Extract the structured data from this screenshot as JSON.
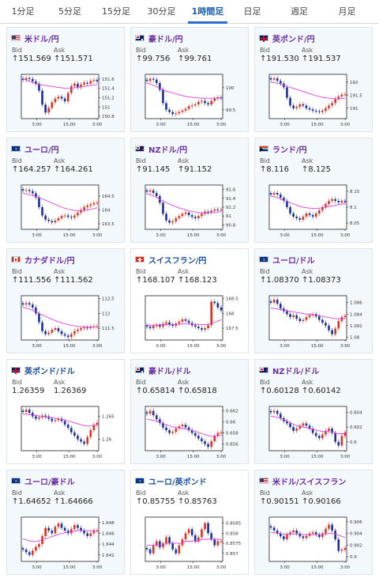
{
  "tabs": [
    {
      "label": "1分足",
      "active": false
    },
    {
      "label": "5分足",
      "active": false
    },
    {
      "label": "15分足",
      "active": false
    },
    {
      "label": "30分足",
      "active": false
    },
    {
      "label": "1時間足",
      "active": true
    },
    {
      "label": "日足",
      "active": false
    },
    {
      "label": "週足",
      "active": false
    },
    {
      "label": "月足",
      "active": false
    }
  ],
  "labels": {
    "bid": "Bid",
    "ask": "Ask"
  },
  "x_ticks": [
    "3:00",
    "15:00",
    "3:00"
  ],
  "colors": {
    "up": "#e03020",
    "down": "#1a2fa0",
    "ma_pink": "#e040e0",
    "ma_teal": "#40b0b0"
  },
  "pairs": [
    {
      "name": "米ドル/円",
      "flag": "us",
      "bid": "↑151.569",
      "ask": "↑151.571",
      "highlight": true,
      "chart_data": {
        "type": "candlestick",
        "y_ticks": [
          "151.6",
          "151.4",
          "151.2",
          "151",
          "150.8"
        ],
        "ylim": [
          150.75,
          151.7
        ],
        "closes": [
          151.58,
          151.62,
          151.6,
          151.55,
          151.5,
          151.35,
          151.05,
          150.88,
          150.98,
          151.1,
          151.18,
          151.22,
          151.18,
          151.12,
          151.3,
          151.45,
          151.5,
          151.42,
          151.48,
          151.52,
          151.5,
          151.56,
          151.58,
          151.55
        ],
        "ma": [
          151.6,
          151.58,
          151.55,
          151.52,
          151.5,
          151.48,
          151.47,
          151.46,
          151.45,
          151.44,
          151.43,
          151.42,
          151.41,
          151.4,
          151.4,
          151.4,
          151.41,
          151.42,
          151.43,
          151.44,
          151.45,
          151.46,
          151.47,
          151.48
        ]
      }
    },
    {
      "name": "豪ドル/円",
      "flag": "au",
      "bid": "↑99.756",
      "ask": "↑99.761",
      "highlight": true,
      "chart_data": {
        "type": "candlestick",
        "y_ticks": [
          "100",
          "99.5"
        ],
        "ylim": [
          99.3,
          100.3
        ],
        "closes": [
          100.15,
          100.2,
          100.18,
          100.1,
          99.95,
          99.65,
          99.5,
          99.45,
          99.4,
          99.42,
          99.45,
          99.48,
          99.52,
          99.58,
          99.6,
          99.62,
          99.68,
          99.7,
          99.65,
          99.62,
          99.7,
          99.75,
          99.78,
          99.76
        ],
        "ma": [
          100.1,
          100.08,
          100.05,
          100.02,
          99.98,
          99.95,
          99.92,
          99.9,
          99.88,
          99.86,
          99.84,
          99.82,
          99.8,
          99.79,
          99.78,
          99.77,
          99.77,
          99.76,
          99.76,
          99.76,
          99.76,
          99.76,
          99.76,
          99.76
        ]
      }
    },
    {
      "name": "英ポンド/円",
      "flag": "gb",
      "bid": "↑191.530",
      "ask": "↑191.537",
      "highlight": true,
      "chart_data": {
        "type": "candlestick",
        "y_ticks": [
          "192",
          "191.5",
          "191"
        ],
        "ylim": [
          190.6,
          192.3
        ],
        "closes": [
          192.1,
          192.15,
          192.05,
          191.95,
          191.8,
          191.4,
          191.1,
          191.0,
          191.05,
          191.15,
          191.1,
          191.0,
          190.95,
          190.9,
          190.88,
          190.85,
          190.9,
          191.0,
          191.1,
          191.2,
          191.35,
          191.45,
          191.52,
          191.53
        ],
        "ma": [
          192.0,
          191.98,
          191.95,
          191.92,
          191.88,
          191.84,
          191.8,
          191.76,
          191.72,
          191.68,
          191.64,
          191.6,
          191.56,
          191.52,
          191.48,
          191.45,
          191.42,
          191.4,
          191.38,
          191.37,
          191.36,
          191.36,
          191.37,
          191.38
        ]
      }
    },
    {
      "name": "ユーロ/円",
      "flag": "eu",
      "bid": "↑164.257",
      "ask": "↑164.261",
      "highlight": true,
      "chart_data": {
        "type": "candlestick",
        "y_ticks": [
          "164.5",
          "164",
          "163.5"
        ],
        "ylim": [
          163.3,
          164.9
        ],
        "closes": [
          164.7,
          164.72,
          164.68,
          164.6,
          164.45,
          164.1,
          163.8,
          163.65,
          163.6,
          163.55,
          163.62,
          163.7,
          163.78,
          163.8,
          163.75,
          163.72,
          163.8,
          163.9,
          164.0,
          164.1,
          164.15,
          164.2,
          164.25,
          164.26
        ],
        "ma": [
          164.6,
          164.58,
          164.55,
          164.52,
          164.48,
          164.44,
          164.4,
          164.35,
          164.3,
          164.25,
          164.2,
          164.15,
          164.1,
          164.06,
          164.03,
          164.0,
          163.98,
          163.97,
          163.97,
          163.98,
          164.0,
          164.02,
          164.05,
          164.08
        ]
      }
    },
    {
      "name": "NZドル/円",
      "flag": "nz",
      "bid": "↑91.145",
      "ask": "↑91.152",
      "highlight": true,
      "chart_data": {
        "type": "candlestick",
        "y_ticks": [
          "91.6",
          "91.4",
          "91.2",
          "91",
          "90.8"
        ],
        "ylim": [
          90.7,
          91.7
        ],
        "closes": [
          91.55,
          91.58,
          91.52,
          91.45,
          91.3,
          91.05,
          90.9,
          90.85,
          90.88,
          90.95,
          91.0,
          91.05,
          91.08,
          91.02,
          90.98,
          90.95,
          91.0,
          91.05,
          91.1,
          91.08,
          91.12,
          91.15,
          91.14,
          91.15
        ],
        "ma": [
          91.5,
          91.48,
          91.45,
          91.42,
          91.38,
          91.34,
          91.3,
          91.27,
          91.24,
          91.21,
          91.18,
          91.16,
          91.14,
          91.12,
          91.1,
          91.09,
          91.08,
          91.07,
          91.07,
          91.07,
          91.08,
          91.08,
          91.09,
          91.1
        ]
      }
    },
    {
      "name": "ランド/円",
      "flag": "za",
      "bid": "↑8.116",
      "ask": "↑8.125",
      "highlight": true,
      "chart_data": {
        "type": "candlestick",
        "y_ticks": [
          "8.15",
          "8.1",
          "8.05"
        ],
        "ylim": [
          8.03,
          8.17
        ],
        "closes": [
          8.14,
          8.145,
          8.14,
          8.13,
          8.12,
          8.1,
          8.08,
          8.07,
          8.065,
          8.06,
          8.07,
          8.08,
          8.075,
          8.07,
          8.08,
          8.09,
          8.1,
          8.11,
          8.12,
          8.125,
          8.12,
          8.115,
          8.12,
          8.116
        ],
        "ma": [
          8.135,
          8.133,
          8.13,
          8.126,
          8.122,
          8.118,
          8.114,
          8.11,
          8.106,
          8.102,
          8.1,
          8.098,
          8.097,
          8.096,
          8.096,
          8.097,
          8.098,
          8.1,
          8.102,
          8.104,
          8.106,
          8.108,
          8.11,
          8.111
        ]
      }
    },
    {
      "name": "カナダドル/円",
      "flag": "ca",
      "bid": "↑111.556",
      "ask": "↑111.562",
      "highlight": true,
      "chart_data": {
        "type": "candlestick",
        "y_ticks": [
          "112.5",
          "112",
          "111.5"
        ],
        "ylim": [
          111.1,
          112.6
        ],
        "closes": [
          112.3,
          112.35,
          112.3,
          112.2,
          112.0,
          111.7,
          111.4,
          111.3,
          111.35,
          111.45,
          111.5,
          111.4,
          111.3,
          111.25,
          111.2,
          111.3,
          111.4,
          111.45,
          111.5,
          111.52,
          111.5,
          111.55,
          111.56,
          111.56
        ],
        "ma": [
          112.2,
          112.18,
          112.15,
          112.1,
          112.05,
          112.0,
          111.95,
          111.9,
          111.85,
          111.8,
          111.76,
          111.72,
          111.68,
          111.65,
          111.62,
          111.6,
          111.58,
          111.56,
          111.55,
          111.54,
          111.54,
          111.54,
          111.54,
          111.55
        ]
      }
    },
    {
      "name": "スイスフラン/円",
      "flag": "ch",
      "bid": "↑168.107",
      "ask": "↑168.123",
      "highlight": false,
      "chart_data": {
        "type": "candlestick",
        "y_ticks": [
          "168.5",
          "168",
          "167.5"
        ],
        "ylim": [
          167.1,
          168.6
        ],
        "closes": [
          167.55,
          167.5,
          167.58,
          167.6,
          167.55,
          167.65,
          167.7,
          167.62,
          167.58,
          167.66,
          167.72,
          167.8,
          167.75,
          167.68,
          167.6,
          167.55,
          167.5,
          167.45,
          167.5,
          167.6,
          168.4,
          168.35,
          168.2,
          168.11
        ],
        "ma": [
          167.6,
          167.6,
          167.6,
          167.61,
          167.61,
          167.62,
          167.62,
          167.62,
          167.62,
          167.63,
          167.63,
          167.64,
          167.64,
          167.64,
          167.64,
          167.63,
          167.63,
          167.62,
          167.62,
          167.63,
          167.66,
          167.7,
          167.74,
          167.78
        ]
      }
    },
    {
      "name": "ユーロ/ドル",
      "flag": "eu",
      "bid": "↑1.08370",
      "ask": "↑1.08373",
      "highlight": true,
      "chart_data": {
        "type": "candlestick",
        "y_ticks": [
          "1.086",
          "1.084",
          "1.082",
          "1.08"
        ],
        "ylim": [
          1.0795,
          1.0872
        ],
        "closes": [
          1.086,
          1.0865,
          1.0858,
          1.085,
          1.0845,
          1.084,
          1.0835,
          1.0838,
          1.0832,
          1.0828,
          1.083,
          1.0835,
          1.0838,
          1.084,
          1.0836,
          1.083,
          1.0825,
          1.082,
          1.0812,
          1.0805,
          1.0815,
          1.0828,
          1.0835,
          1.0837
        ],
        "ma": [
          1.085,
          1.085,
          1.0849,
          1.0848,
          1.0847,
          1.0846,
          1.0845,
          1.0844,
          1.0843,
          1.0842,
          1.0841,
          1.084,
          1.084,
          1.0839,
          1.0838,
          1.0837,
          1.0836,
          1.0835,
          1.0834,
          1.0833,
          1.0832,
          1.0832,
          1.0832,
          1.0833
        ]
      }
    },
    {
      "name": "英ポンド/ドル",
      "flag": "gb",
      "bid": "1.26359",
      "ask": "1.26369",
      "highlight": false,
      "chart_data": {
        "type": "candlestick",
        "y_ticks": [
          "1.265",
          "1.26"
        ],
        "ylim": [
          1.2575,
          1.2672
        ],
        "closes": [
          1.266,
          1.2665,
          1.2658,
          1.265,
          1.2645,
          1.2648,
          1.2652,
          1.265,
          1.2645,
          1.264,
          1.2642,
          1.2645,
          1.264,
          1.2632,
          1.2625,
          1.2615,
          1.2608,
          1.26,
          1.2595,
          1.259,
          1.2605,
          1.262,
          1.2632,
          1.2636
        ],
        "ma": [
          1.2655,
          1.2655,
          1.2654,
          1.2653,
          1.2652,
          1.2651,
          1.265,
          1.2649,
          1.2648,
          1.2647,
          1.2646,
          1.2645,
          1.2644,
          1.2642,
          1.264,
          1.2638,
          1.2636,
          1.2634,
          1.2632,
          1.263,
          1.2629,
          1.2629,
          1.263,
          1.2631
        ]
      }
    },
    {
      "name": "豪ドル/ドル",
      "flag": "au",
      "bid": "↑0.65814",
      "ask": "↑0.65818",
      "highlight": true,
      "chart_data": {
        "type": "candlestick",
        "y_ticks": [
          "0.662",
          "0.66",
          "0.658",
          "0.656"
        ],
        "ylim": [
          0.6548,
          0.6628
        ],
        "closes": [
          0.6615,
          0.662,
          0.6612,
          0.6605,
          0.6598,
          0.659,
          0.6585,
          0.658,
          0.6582,
          0.6588,
          0.6592,
          0.6595,
          0.659,
          0.6585,
          0.658,
          0.6575,
          0.657,
          0.6565,
          0.656,
          0.6555,
          0.6565,
          0.6575,
          0.658,
          0.6581
        ],
        "ma": [
          0.6605,
          0.6604,
          0.6603,
          0.6601,
          0.6599,
          0.6597,
          0.6595,
          0.6593,
          0.6591,
          0.659,
          0.6589,
          0.6588,
          0.6587,
          0.6586,
          0.6585,
          0.6583,
          0.6581,
          0.6579,
          0.6577,
          0.6575,
          0.6574,
          0.6574,
          0.6575,
          0.6576
        ]
      }
    },
    {
      "name": "NZドル/ドル",
      "flag": "nz",
      "bid": "↑0.60128",
      "ask": "↑0.60142",
      "highlight": true,
      "chart_data": {
        "type": "candlestick",
        "y_ticks": [
          "0.604",
          "0.602",
          "0.6"
        ],
        "ylim": [
          0.5988,
          0.6048
        ],
        "closes": [
          0.604,
          0.6042,
          0.6038,
          0.6032,
          0.6028,
          0.6025,
          0.602,
          0.6015,
          0.6018,
          0.6022,
          0.6025,
          0.6022,
          0.6018,
          0.6012,
          0.6008,
          0.6005,
          0.601,
          0.6015,
          0.6018,
          0.6012,
          0.6,
          0.5995,
          0.6008,
          0.6013
        ],
        "ma": [
          0.6035,
          0.6034,
          0.6033,
          0.6032,
          0.603,
          0.6028,
          0.6026,
          0.6024,
          0.6022,
          0.6021,
          0.602,
          0.6019,
          0.6018,
          0.6017,
          0.6016,
          0.6015,
          0.6014,
          0.6014,
          0.6014,
          0.6013,
          0.6012,
          0.6011,
          0.6011,
          0.6011
        ]
      }
    },
    {
      "name": "ユーロ/豪ドル",
      "flag": "eu",
      "bid": "↑1.64652",
      "ask": "↑1.64666",
      "highlight": true,
      "chart_data": {
        "type": "candlestick",
        "y_ticks": [
          "1.648",
          "1.646",
          "1.644",
          "1.642"
        ],
        "ylim": [
          1.6408,
          1.649
        ],
        "closes": [
          1.643,
          1.6425,
          1.642,
          1.6428,
          1.6435,
          1.644,
          1.6455,
          1.647,
          1.6465,
          1.646,
          1.6472,
          1.6478,
          1.647,
          1.6465,
          1.646,
          1.6468,
          1.6475,
          1.647,
          1.6465,
          1.646,
          1.6455,
          1.646,
          1.6465,
          1.6465
        ],
        "ma": [
          1.645,
          1.6448,
          1.6446,
          1.6445,
          1.6445,
          1.6446,
          1.6448,
          1.645,
          1.6452,
          1.6454,
          1.6456,
          1.6458,
          1.646,
          1.6461,
          1.6462,
          1.6463,
          1.6464,
          1.6465,
          1.6465,
          1.6465,
          1.6465,
          1.6465,
          1.6465,
          1.6465
        ]
      }
    },
    {
      "name": "ユーロ/英ポンド",
      "flag": "eu",
      "bid": "↑0.85755",
      "ask": "↑0.85763",
      "highlight": false,
      "chart_data": {
        "type": "candlestick",
        "y_ticks": [
          "0.8585",
          "0.858",
          "0.8575",
          "0.857"
        ],
        "ylim": [
          0.8566,
          0.8588
        ],
        "closes": [
          0.8572,
          0.857,
          0.8574,
          0.8576,
          0.8573,
          0.8575,
          0.8578,
          0.8575,
          0.8572,
          0.857,
          0.8574,
          0.8577,
          0.858,
          0.8582,
          0.8579,
          0.8576,
          0.8578,
          0.8582,
          0.8585,
          0.858,
          0.8577,
          0.8574,
          0.8576,
          0.8576
        ],
        "ma": [
          0.8574,
          0.8574,
          0.8574,
          0.8574,
          0.8574,
          0.8574,
          0.8575,
          0.8575,
          0.8575,
          0.8575,
          0.8575,
          0.8575,
          0.8576,
          0.8576,
          0.8576,
          0.8576,
          0.8576,
          0.8577,
          0.8577,
          0.8577,
          0.8577,
          0.8577,
          0.8577,
          0.8577
        ]
      }
    },
    {
      "name": "米ドル/スイスフラン",
      "flag": "us",
      "bid": "↑0.90151",
      "ask": "↑0.90166",
      "highlight": true,
      "chart_data": {
        "type": "candlestick",
        "y_ticks": [
          "0.906",
          "0.904",
          "0.902",
          "0.9"
        ],
        "ylim": [
          0.8992,
          0.9068
        ],
        "closes": [
          0.905,
          0.9045,
          0.904,
          0.9035,
          0.903,
          0.9038,
          0.9042,
          0.9045,
          0.904,
          0.9035,
          0.9032,
          0.9036,
          0.904,
          0.9042,
          0.9038,
          0.9034,
          0.904,
          0.9048,
          0.9055,
          0.9045,
          0.903,
          0.901,
          0.9012,
          0.9015
        ],
        "ma": [
          0.9042,
          0.9041,
          0.904,
          0.904,
          0.9039,
          0.9039,
          0.9039,
          0.9039,
          0.9039,
          0.9039,
          0.9038,
          0.9038,
          0.9038,
          0.9038,
          0.9038,
          0.9038,
          0.9038,
          0.9039,
          0.904,
          0.904,
          0.9039,
          0.9037,
          0.9035,
          0.9033
        ]
      }
    }
  ]
}
